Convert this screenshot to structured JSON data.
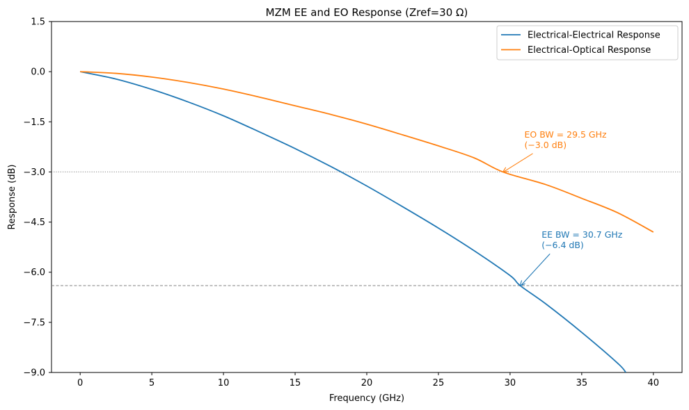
{
  "chart_data": {
    "type": "line",
    "title": "MZM EE and EO Response (Zref=30 Ω)",
    "xlabel": "Frequency (GHz)",
    "ylabel": "Response (dB)",
    "xlim": [
      -2,
      42
    ],
    "ylim": [
      -9,
      1.5
    ],
    "xticks": [
      0,
      5,
      10,
      15,
      20,
      25,
      30,
      35,
      40
    ],
    "xtick_labels": [
      "0",
      "5",
      "10",
      "15",
      "20",
      "25",
      "30",
      "35",
      "40"
    ],
    "yticks": [
      1.5,
      0.0,
      -1.5,
      -3.0,
      -4.5,
      -6.0,
      -7.5,
      -9.0
    ],
    "ytick_labels": [
      "1.5",
      "0.0",
      "−1.5",
      "−3.0",
      "−4.5",
      "−6.0",
      "−7.5",
      "−9.0"
    ],
    "grid": false,
    "legend_position": "top-right",
    "series": [
      {
        "name": "Electrical-Electrical Response",
        "color": "#1f77b4",
        "x": [
          0,
          2.5,
          5,
          7.5,
          10,
          12.5,
          15,
          17.5,
          20,
          22.5,
          25,
          27.5,
          30,
          30.7,
          32.5,
          35,
          37.5,
          38.08
        ],
        "y": [
          0,
          -0.22,
          -0.53,
          -0.9,
          -1.32,
          -1.8,
          -2.3,
          -2.84,
          -3.42,
          -4.04,
          -4.68,
          -5.36,
          -6.1,
          -6.4,
          -6.95,
          -7.8,
          -8.72,
          -9.0
        ]
      },
      {
        "name": "Electrical-Optical Response",
        "color": "#ff7f0e",
        "x": [
          0,
          2.5,
          5,
          7.5,
          10,
          12.5,
          15,
          17.5,
          20,
          22.5,
          25,
          27.5,
          29.5,
          32.5,
          35,
          37.5,
          40
        ],
        "y": [
          0,
          -0.05,
          -0.16,
          -0.32,
          -0.52,
          -0.76,
          -1.02,
          -1.28,
          -1.57,
          -1.89,
          -2.22,
          -2.58,
          -3.0,
          -3.38,
          -3.79,
          -4.22,
          -4.8
        ]
      }
    ],
    "reference_lines": [
      {
        "y": -3.0,
        "style": "dotted",
        "color": "#808080"
      },
      {
        "y": -6.4,
        "style": "dashed",
        "color": "#808080"
      }
    ],
    "annotations": [
      {
        "text_line1": "EO BW = 29.5 GHz",
        "text_line2": "(−3.0 dB)",
        "color": "#ff7f0e",
        "point": [
          29.5,
          -3.0
        ],
        "text_at": [
          31.0,
          -2.2
        ]
      },
      {
        "text_line1": "EE BW = 30.7 GHz",
        "text_line2": "(−6.4 dB)",
        "color": "#1f77b4",
        "point": [
          30.7,
          -6.4
        ],
        "text_at": [
          32.2,
          -5.2
        ]
      }
    ]
  }
}
